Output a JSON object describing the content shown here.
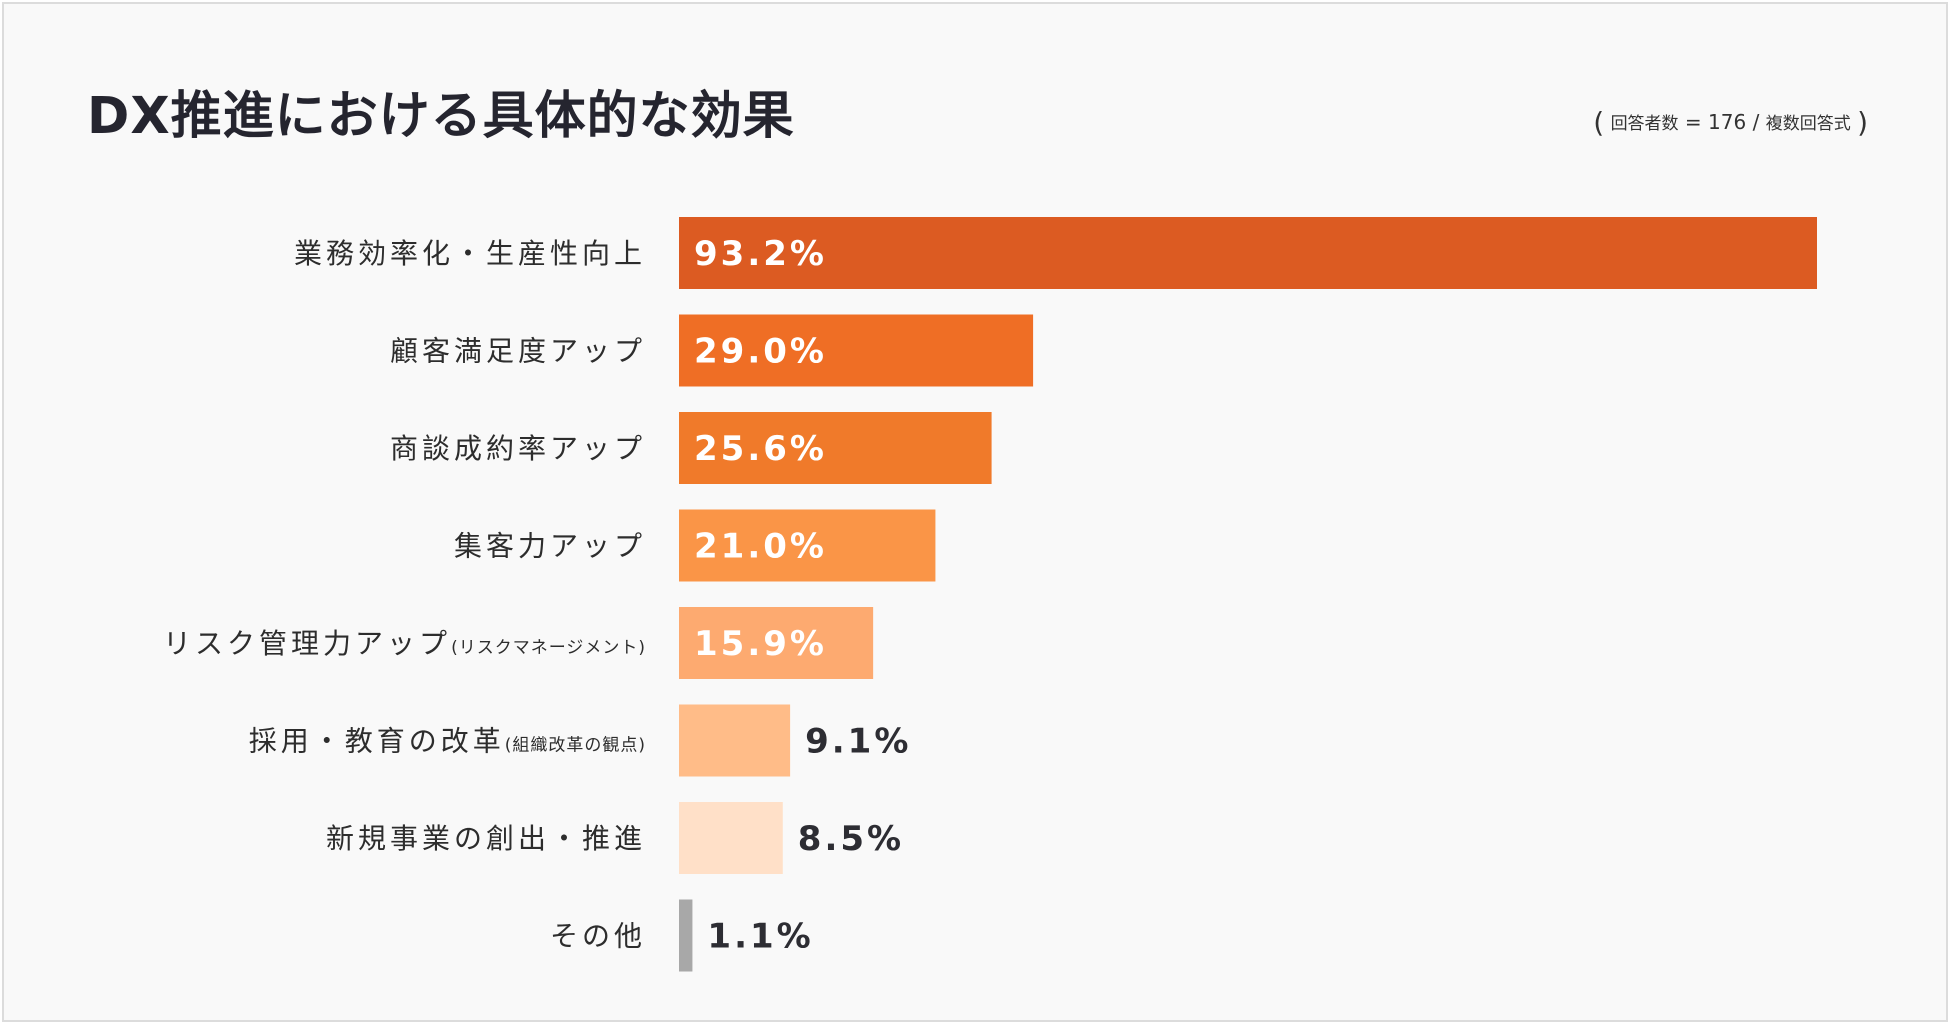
{
  "title": "DX推進における具体的な効果",
  "note": {
    "open": "(",
    "respondents_label": "回答者数",
    "equals": "=",
    "respondents_count": "176",
    "slash": "/",
    "answer_type": "複数回答式",
    "close": ")"
  },
  "chart_data": {
    "type": "bar",
    "orientation": "horizontal",
    "title": "DX推進における具体的な効果",
    "xlim": [
      0,
      100
    ],
    "grid": false,
    "categories": [
      {
        "label": "業務効率化・生産性向上",
        "sub": ""
      },
      {
        "label": "顧客満足度アップ",
        "sub": ""
      },
      {
        "label": "商談成約率アップ",
        "sub": ""
      },
      {
        "label": "集客力アップ",
        "sub": ""
      },
      {
        "label": "リスク管理力アップ",
        "sub": "(リスクマネージメント)"
      },
      {
        "label": "採用・教育の改革",
        "sub": "(組織改革の観点)"
      },
      {
        "label": "新規事業の創出・推進",
        "sub": ""
      },
      {
        "label": "その他",
        "sub": ""
      }
    ],
    "values": [
      93.2,
      29.0,
      25.6,
      21.0,
      15.9,
      9.1,
      8.5,
      1.1
    ],
    "value_labels": [
      "93.2%",
      "29.0%",
      "25.6%",
      "21.0%",
      "15.9%",
      "9.1%",
      "8.5%",
      "1.1%"
    ],
    "colors": [
      "#dc5b22",
      "#ef6e25",
      "#f07a2a",
      "#fa9547",
      "#fdaa70",
      "#ffbc88",
      "#ffe0c8",
      "#a8a8a8"
    ]
  }
}
